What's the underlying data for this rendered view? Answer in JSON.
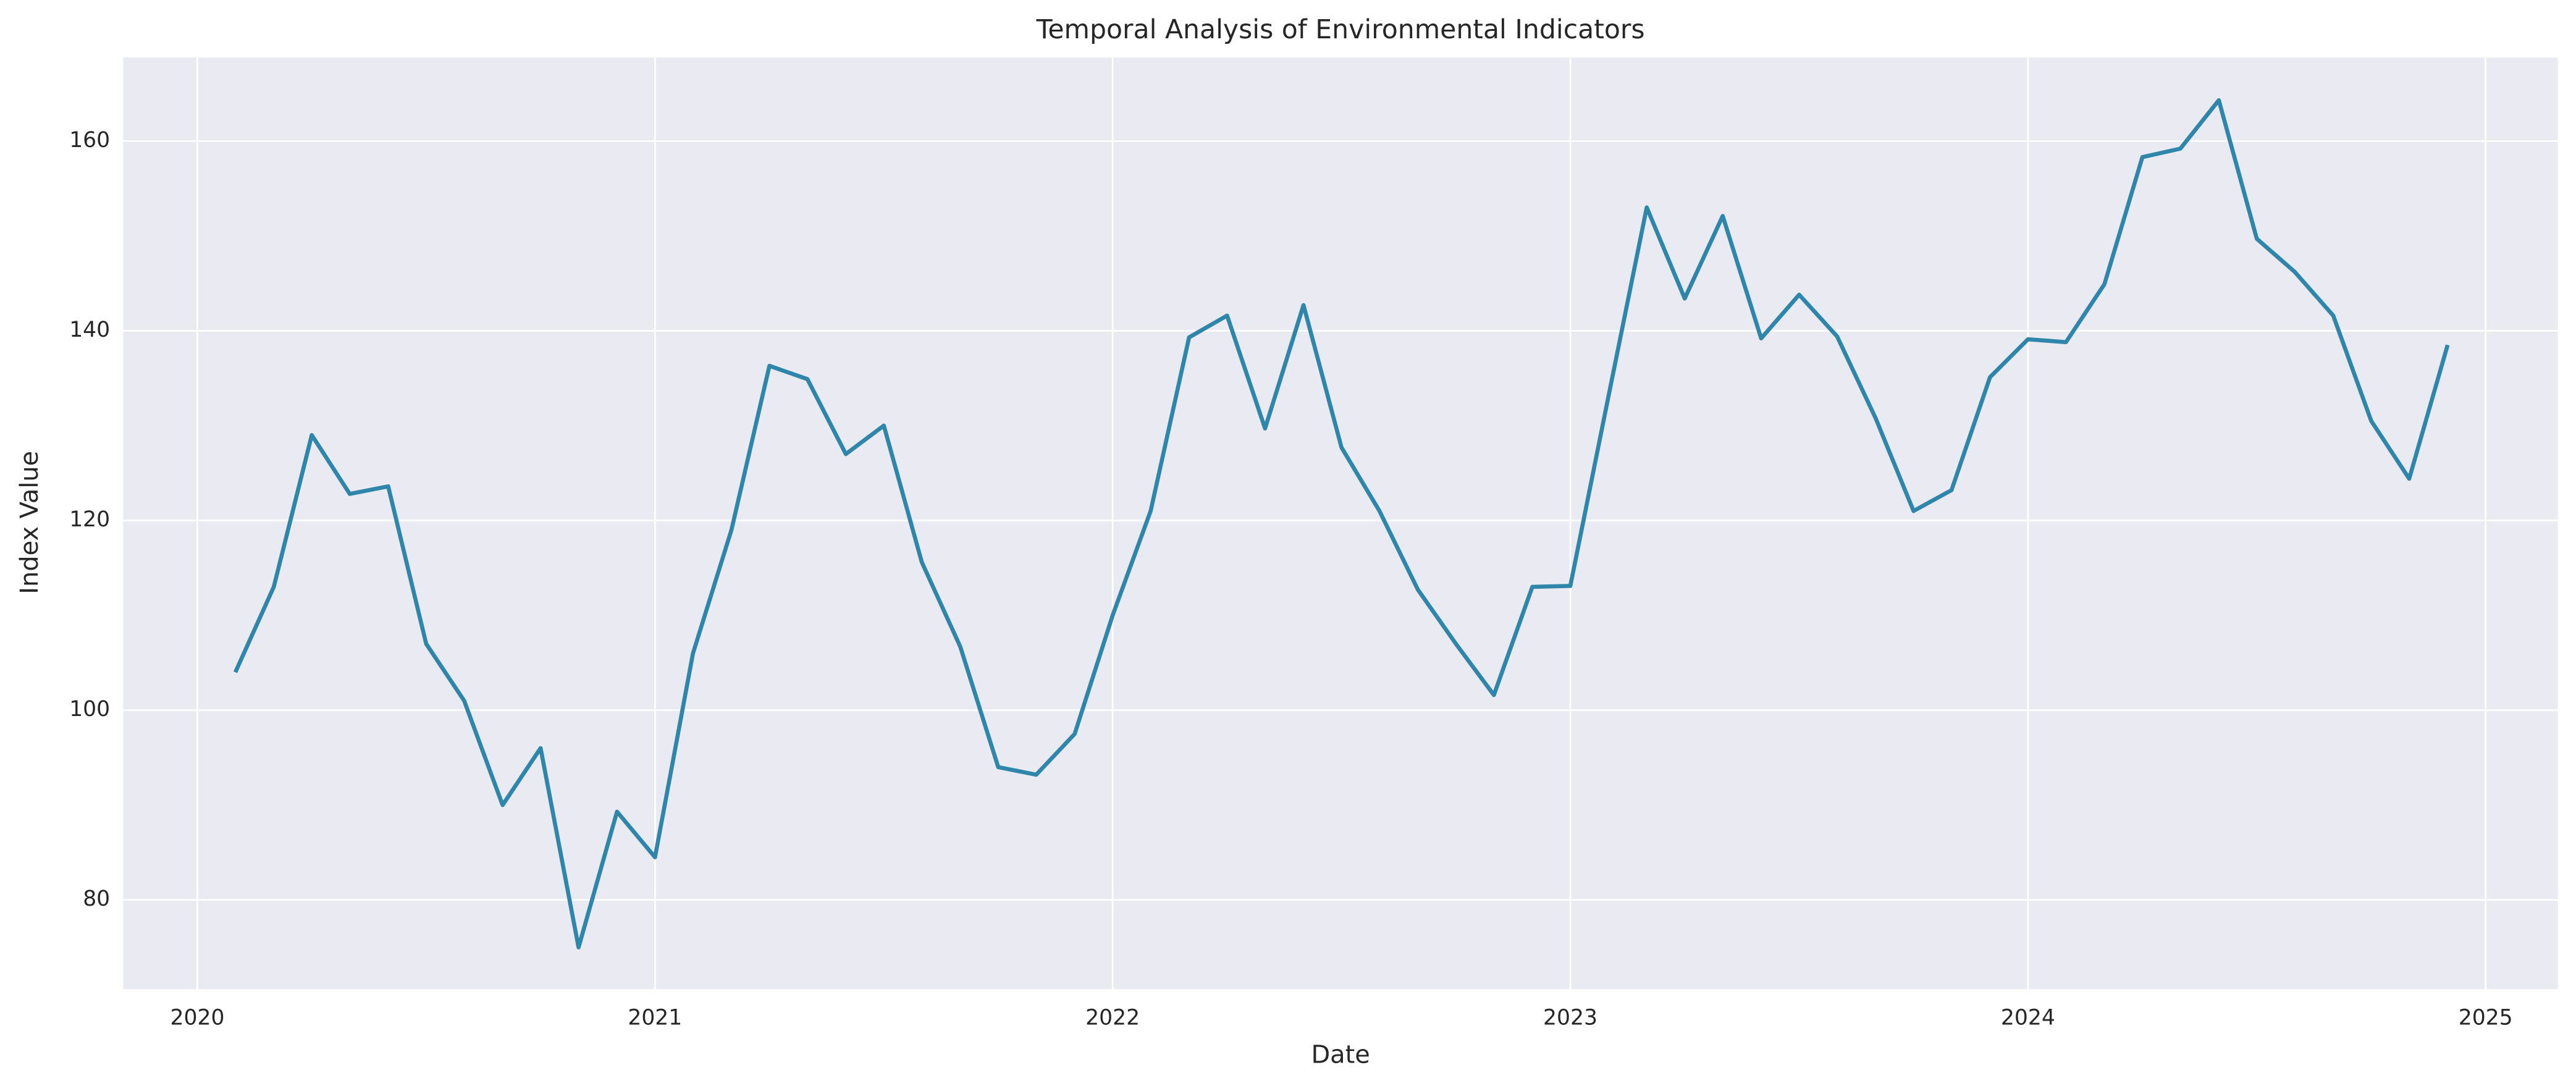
{
  "chart_data": {
    "type": "line",
    "title": "Temporal Analysis of Environmental Indicators",
    "xlabel": "Date",
    "ylabel": "Index Value",
    "x": [
      2020.083,
      2020.167,
      2020.25,
      2020.333,
      2020.417,
      2020.5,
      2020.583,
      2020.667,
      2020.75,
      2020.833,
      2020.917,
      2021,
      2021.083,
      2021.167,
      2021.25,
      2021.333,
      2021.417,
      2021.5,
      2021.583,
      2021.667,
      2021.75,
      2021.833,
      2021.917,
      2022,
      2022.083,
      2022.167,
      2022.25,
      2022.333,
      2022.417,
      2022.5,
      2022.583,
      2022.667,
      2022.75,
      2022.833,
      2022.917,
      2023,
      2023.083,
      2023.167,
      2023.25,
      2023.333,
      2023.417,
      2023.5,
      2023.583,
      2023.667,
      2023.75,
      2023.833,
      2023.917,
      2024,
      2024.083,
      2024.167,
      2024.25,
      2024.333,
      2024.417,
      2024.5,
      2024.583,
      2024.667,
      2024.75,
      2024.833,
      2024.917
    ],
    "series": [
      {
        "name": "Index Value",
        "color": "#2e86ab",
        "values": [
          104,
          113,
          129,
          122.8,
          123.6,
          107,
          101,
          90,
          96,
          75,
          89.3,
          84.5,
          106,
          119,
          136.3,
          134.9,
          127,
          130,
          115.6,
          106.7,
          94,
          93.2,
          97.5,
          110,
          121,
          139.3,
          141.6,
          129.7,
          142.7,
          127.7,
          121,
          112.7,
          107,
          101.6,
          113,
          113.1,
          133,
          153,
          143.4,
          152.1,
          139.2,
          143.8,
          139.4,
          130.8,
          121,
          123.2,
          135.1,
          139.1,
          138.8,
          144.9,
          158.3,
          159.2,
          164.3,
          149.7,
          146.2,
          141.6,
          130.5,
          124.4,
          138.5
        ]
      }
    ],
    "xlim": [
      2019.838,
      2025.158
    ],
    "xticks": [
      2020,
      2021,
      2022,
      2023,
      2024,
      2025
    ],
    "ylim": [
      70.6,
      168.8
    ],
    "yticks": [
      80,
      100,
      120,
      140,
      160
    ],
    "grid": true
  }
}
